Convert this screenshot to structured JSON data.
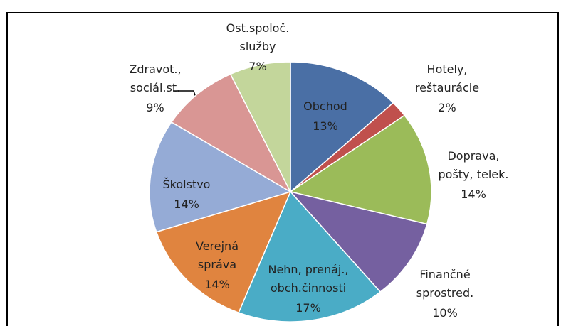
{
  "chart_data": {
    "type": "pie",
    "categories": [
      "Obchod",
      "Hotely,\nreštaurácie",
      "Doprava,\npošty, telek.",
      "Finančné\nsprostred.",
      "Nehn, prenáj.,\nobch.činnosti",
      "Verejná\nspráva",
      "Školstvo",
      "Zdravot.,\nsociál.st.",
      "Ost.spoloč.\nslužby"
    ],
    "values": [
      13,
      2,
      14,
      10,
      17,
      14,
      14,
      9,
      7
    ],
    "value_labels": [
      "13%",
      "2%",
      "14%",
      "10%",
      "17%",
      "14%",
      "14%",
      "9%",
      "7%"
    ],
    "colors": [
      "#4a6fa5",
      "#c0504d",
      "#9bbb59",
      "#7560a0",
      "#4aacc6",
      "#e0843f",
      "#95abd6",
      "#d99694",
      "#c3d69b"
    ]
  }
}
